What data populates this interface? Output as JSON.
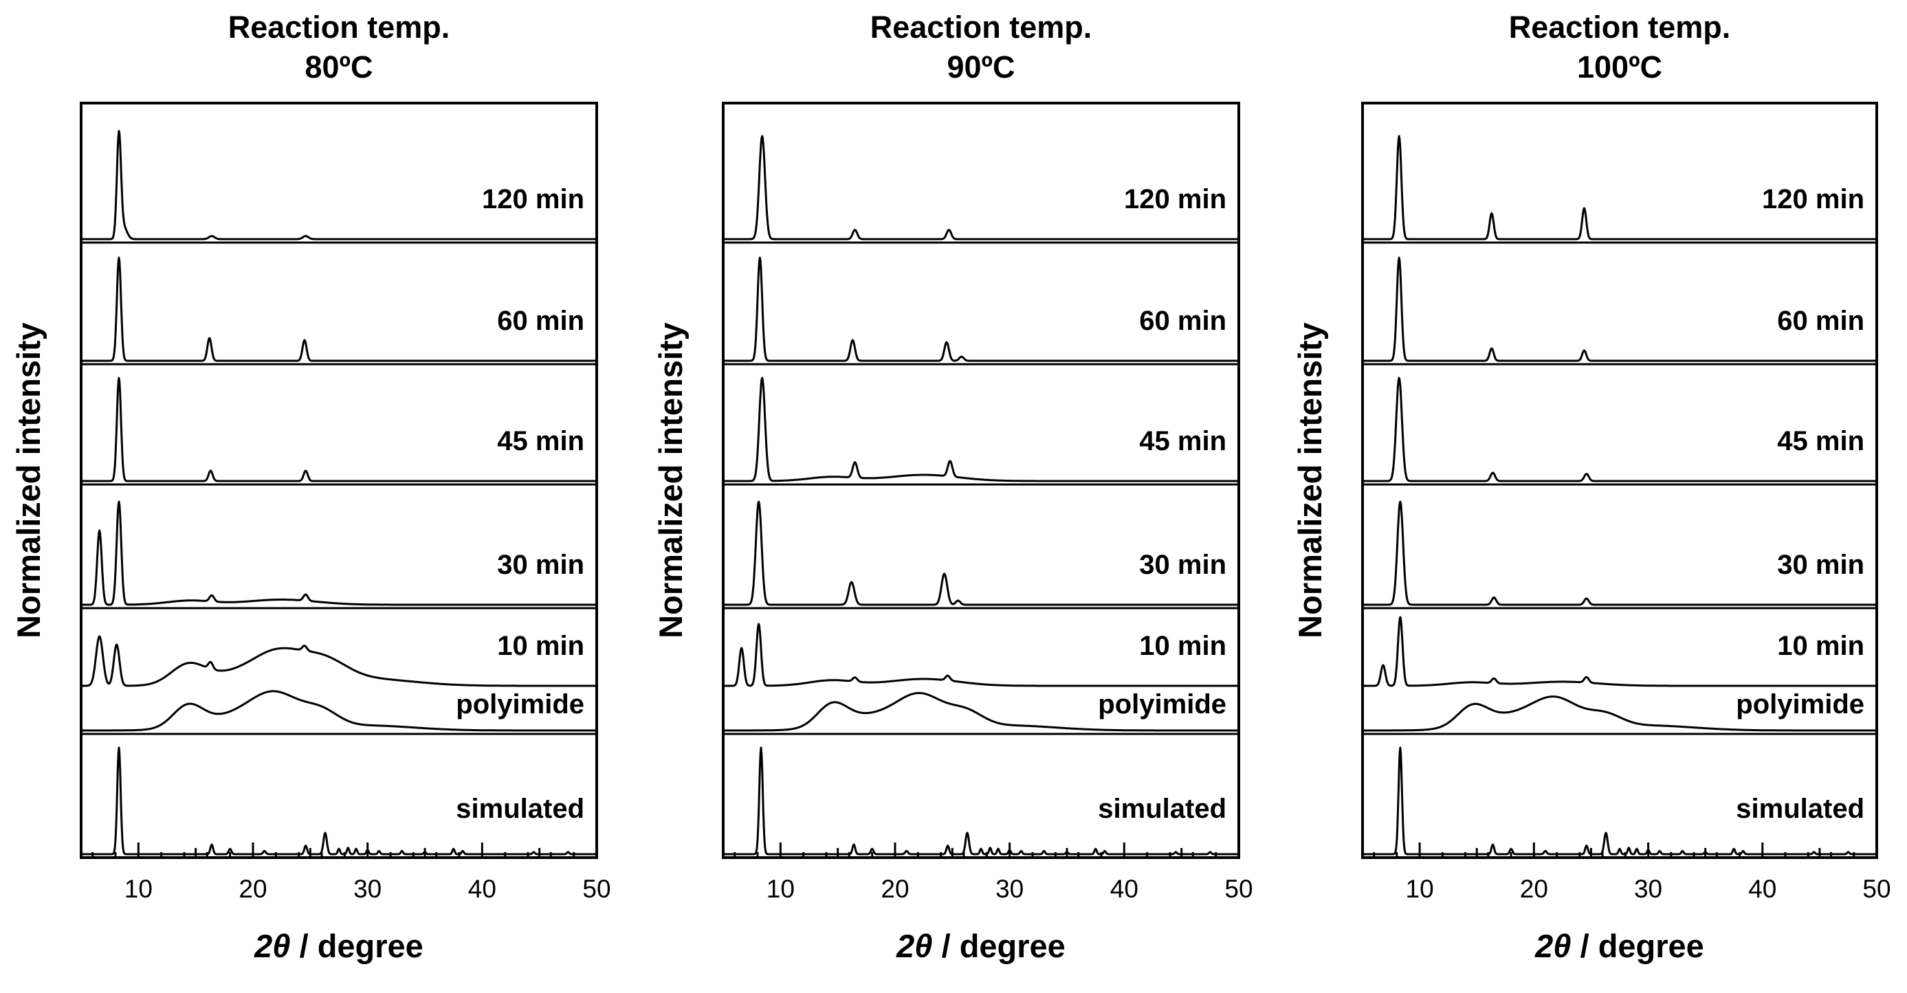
{
  "chart_data": [
    {
      "type": "line",
      "title_lines": [
        "Reaction temp.",
        "80ºC"
      ],
      "ylabel": "Normalized intensity",
      "xlabel_symbol": "2θ",
      "xlabel_rest": " / degree",
      "xlim": [
        5,
        50
      ],
      "x_ticks": [
        10,
        20,
        30,
        40,
        50
      ],
      "series": [
        {
          "name": "120 min",
          "baseline": 0.0,
          "background": [],
          "peaks": [
            [
              8.3,
              1.0,
              0.18
            ],
            [
              8.7,
              0.12,
              0.3
            ],
            [
              16.4,
              0.03,
              0.25
            ],
            [
              24.6,
              0.03,
              0.25
            ]
          ]
        },
        {
          "name": "60 min",
          "baseline": 0.0,
          "background": [],
          "peaks": [
            [
              8.3,
              1.0,
              0.18
            ],
            [
              16.2,
              0.22,
              0.18
            ],
            [
              24.5,
              0.2,
              0.18
            ]
          ]
        },
        {
          "name": "45 min",
          "baseline": 0.0,
          "background": [],
          "peaks": [
            [
              8.3,
              1.0,
              0.18
            ],
            [
              16.3,
              0.1,
              0.18
            ],
            [
              24.6,
              0.1,
              0.18
            ]
          ]
        },
        {
          "name": "30 min",
          "baseline": 0.0,
          "background": [
            [
              14.5,
              0.04,
              2.0
            ],
            [
              22.5,
              0.05,
              3.0
            ]
          ],
          "peaks": [
            [
              6.6,
              0.72,
              0.2
            ],
            [
              8.3,
              1.0,
              0.2
            ],
            [
              16.4,
              0.06,
              0.2
            ],
            [
              24.6,
              0.06,
              0.2
            ]
          ]
        },
        {
          "name": "10 min",
          "baseline": 0.0,
          "background": [
            [
              14.3,
              0.28,
              1.5
            ],
            [
              18.0,
              0.15,
              2.5
            ],
            [
              22.2,
              0.45,
              2.2
            ],
            [
              26.2,
              0.3,
              2.0
            ],
            [
              30.0,
              0.1,
              4.0
            ]
          ],
          "peaks": [
            [
              6.6,
              0.72,
              0.3
            ],
            [
              8.1,
              0.6,
              0.25
            ],
            [
              16.3,
              0.1,
              0.2
            ],
            [
              24.5,
              0.07,
              0.2
            ]
          ]
        },
        {
          "name": "polyimide",
          "baseline": 0.0,
          "background": [
            [
              14.3,
              0.5,
              1.3
            ],
            [
              18.0,
              0.3,
              3.0
            ],
            [
              22.0,
              0.8,
              2.2
            ],
            [
              26.0,
              0.35,
              1.5
            ],
            [
              30.0,
              0.12,
              4.0
            ]
          ],
          "peaks": []
        },
        {
          "name": "simulated",
          "baseline": 0.0,
          "background": [],
          "peaks": [
            [
              8.3,
              1.0,
              0.15
            ],
            [
              16.4,
              0.09,
              0.12
            ],
            [
              18.0,
              0.05,
              0.12
            ],
            [
              21.0,
              0.03,
              0.12
            ],
            [
              24.6,
              0.08,
              0.12
            ],
            [
              26.3,
              0.2,
              0.15
            ],
            [
              27.5,
              0.05,
              0.1
            ],
            [
              28.3,
              0.06,
              0.1
            ],
            [
              29.0,
              0.05,
              0.1
            ],
            [
              30.0,
              0.04,
              0.1
            ],
            [
              31.0,
              0.03,
              0.1
            ],
            [
              33.0,
              0.03,
              0.1
            ],
            [
              35.0,
              0.02,
              0.1
            ],
            [
              37.5,
              0.05,
              0.1
            ],
            [
              38.3,
              0.03,
              0.1
            ],
            [
              44.5,
              0.02,
              0.1
            ],
            [
              47.5,
              0.02,
              0.1
            ]
          ]
        }
      ]
    },
    {
      "type": "line",
      "title_lines": [
        "Reaction temp.",
        "90ºC"
      ],
      "ylabel": "Normalized intensity",
      "xlabel_symbol": "2θ",
      "xlabel_rest": " / degree",
      "xlim": [
        5,
        50
      ],
      "x_ticks": [
        10,
        20,
        30,
        40,
        50
      ],
      "series": [
        {
          "name": "120 min",
          "baseline": 0.0,
          "background": [],
          "peaks": [
            [
              8.4,
              1.0,
              0.25
            ],
            [
              16.5,
              0.09,
              0.2
            ],
            [
              24.7,
              0.09,
              0.2
            ]
          ]
        },
        {
          "name": "60 min",
          "baseline": 0.0,
          "background": [],
          "peaks": [
            [
              8.2,
              1.0,
              0.2
            ],
            [
              16.3,
              0.2,
              0.2
            ],
            [
              24.5,
              0.18,
              0.2
            ],
            [
              25.8,
              0.04,
              0.2
            ]
          ]
        },
        {
          "name": "45 min",
          "baseline": 0.0,
          "background": [
            [
              14.5,
              0.04,
              2.0
            ],
            [
              22.5,
              0.06,
              3.0
            ]
          ],
          "peaks": [
            [
              8.4,
              1.0,
              0.25
            ],
            [
              16.5,
              0.15,
              0.2
            ],
            [
              24.8,
              0.15,
              0.2
            ]
          ]
        },
        {
          "name": "30 min",
          "baseline": 0.0,
          "background": [],
          "peaks": [
            [
              8.1,
              1.0,
              0.25
            ],
            [
              16.2,
              0.22,
              0.25
            ],
            [
              24.3,
              0.3,
              0.25
            ],
            [
              25.5,
              0.04,
              0.2
            ]
          ]
        },
        {
          "name": "10 min",
          "baseline": 0.0,
          "background": [
            [
              14.5,
              0.08,
              2.0
            ],
            [
              22.5,
              0.1,
              3.0
            ]
          ],
          "peaks": [
            [
              6.6,
              0.55,
              0.2
            ],
            [
              8.1,
              0.9,
              0.2
            ],
            [
              16.5,
              0.06,
              0.2
            ],
            [
              24.6,
              0.07,
              0.2
            ]
          ]
        },
        {
          "name": "polyimide",
          "baseline": 0.0,
          "background": [
            [
              14.5,
              0.5,
              1.3
            ],
            [
              18.0,
              0.35,
              3.0
            ],
            [
              22.3,
              0.75,
              2.0
            ],
            [
              26.2,
              0.35,
              1.5
            ],
            [
              30.0,
              0.12,
              4.0
            ]
          ],
          "peaks": []
        },
        {
          "name": "simulated",
          "baseline": 0.0,
          "background": [],
          "peaks": [
            [
              8.3,
              1.0,
              0.15
            ],
            [
              16.4,
              0.09,
              0.12
            ],
            [
              18.0,
              0.05,
              0.12
            ],
            [
              21.0,
              0.03,
              0.12
            ],
            [
              24.6,
              0.08,
              0.12
            ],
            [
              26.3,
              0.2,
              0.15
            ],
            [
              27.5,
              0.05,
              0.1
            ],
            [
              28.3,
              0.06,
              0.1
            ],
            [
              29.0,
              0.05,
              0.1
            ],
            [
              30.0,
              0.04,
              0.1
            ],
            [
              31.0,
              0.03,
              0.1
            ],
            [
              33.0,
              0.03,
              0.1
            ],
            [
              35.0,
              0.02,
              0.1
            ],
            [
              37.5,
              0.05,
              0.1
            ],
            [
              38.3,
              0.03,
              0.1
            ],
            [
              44.5,
              0.02,
              0.1
            ],
            [
              47.5,
              0.02,
              0.1
            ]
          ]
        }
      ]
    },
    {
      "type": "line",
      "title_lines": [
        "Reaction temp.",
        "100ºC"
      ],
      "ylabel": "Normalized intensity",
      "xlabel_symbol": "2θ",
      "xlabel_rest": " / degree",
      "xlim": [
        5,
        50
      ],
      "x_ticks": [
        10,
        20,
        30,
        40,
        50
      ],
      "series": [
        {
          "name": "120 min",
          "baseline": 0.0,
          "background": [],
          "peaks": [
            [
              8.2,
              1.0,
              0.2
            ],
            [
              16.3,
              0.25,
              0.18
            ],
            [
              24.4,
              0.3,
              0.18
            ]
          ]
        },
        {
          "name": "60 min",
          "baseline": 0.0,
          "background": [],
          "peaks": [
            [
              8.2,
              1.0,
              0.2
            ],
            [
              16.3,
              0.12,
              0.18
            ],
            [
              24.4,
              0.1,
              0.18
            ]
          ]
        },
        {
          "name": "45 min",
          "baseline": 0.0,
          "background": [],
          "peaks": [
            [
              8.2,
              1.0,
              0.25
            ],
            [
              16.4,
              0.08,
              0.2
            ],
            [
              24.6,
              0.07,
              0.2
            ]
          ]
        },
        {
          "name": "30 min",
          "baseline": 0.0,
          "background": [],
          "peaks": [
            [
              8.3,
              1.0,
              0.25
            ],
            [
              16.5,
              0.07,
              0.2
            ],
            [
              24.6,
              0.06,
              0.2
            ]
          ]
        },
        {
          "name": "10 min",
          "baseline": 0.0,
          "background": [
            [
              14.5,
              0.05,
              2.0
            ],
            [
              22.5,
              0.06,
              3.0
            ]
          ],
          "peaks": [
            [
              6.8,
              0.3,
              0.2
            ],
            [
              8.3,
              1.0,
              0.2
            ],
            [
              16.5,
              0.07,
              0.2
            ],
            [
              24.6,
              0.08,
              0.2
            ]
          ]
        },
        {
          "name": "polyimide",
          "baseline": 0.0,
          "background": [
            [
              14.6,
              0.45,
              1.3
            ],
            [
              18.0,
              0.35,
              3.0
            ],
            [
              22.0,
              0.65,
              2.0
            ],
            [
              26.2,
              0.3,
              1.5
            ],
            [
              30.0,
              0.12,
              4.0
            ]
          ],
          "peaks": []
        },
        {
          "name": "simulated",
          "baseline": 0.0,
          "background": [],
          "peaks": [
            [
              8.3,
              1.0,
              0.15
            ],
            [
              16.4,
              0.09,
              0.12
            ],
            [
              18.0,
              0.05,
              0.12
            ],
            [
              21.0,
              0.03,
              0.12
            ],
            [
              24.6,
              0.08,
              0.12
            ],
            [
              26.3,
              0.2,
              0.15
            ],
            [
              27.5,
              0.05,
              0.1
            ],
            [
              28.3,
              0.06,
              0.1
            ],
            [
              29.0,
              0.05,
              0.1
            ],
            [
              30.0,
              0.04,
              0.1
            ],
            [
              31.0,
              0.03,
              0.1
            ],
            [
              33.0,
              0.03,
              0.1
            ],
            [
              35.0,
              0.02,
              0.1
            ],
            [
              37.5,
              0.05,
              0.1
            ],
            [
              38.3,
              0.03,
              0.1
            ],
            [
              44.5,
              0.02,
              0.1
            ],
            [
              47.5,
              0.02,
              0.1
            ]
          ]
        }
      ]
    }
  ]
}
